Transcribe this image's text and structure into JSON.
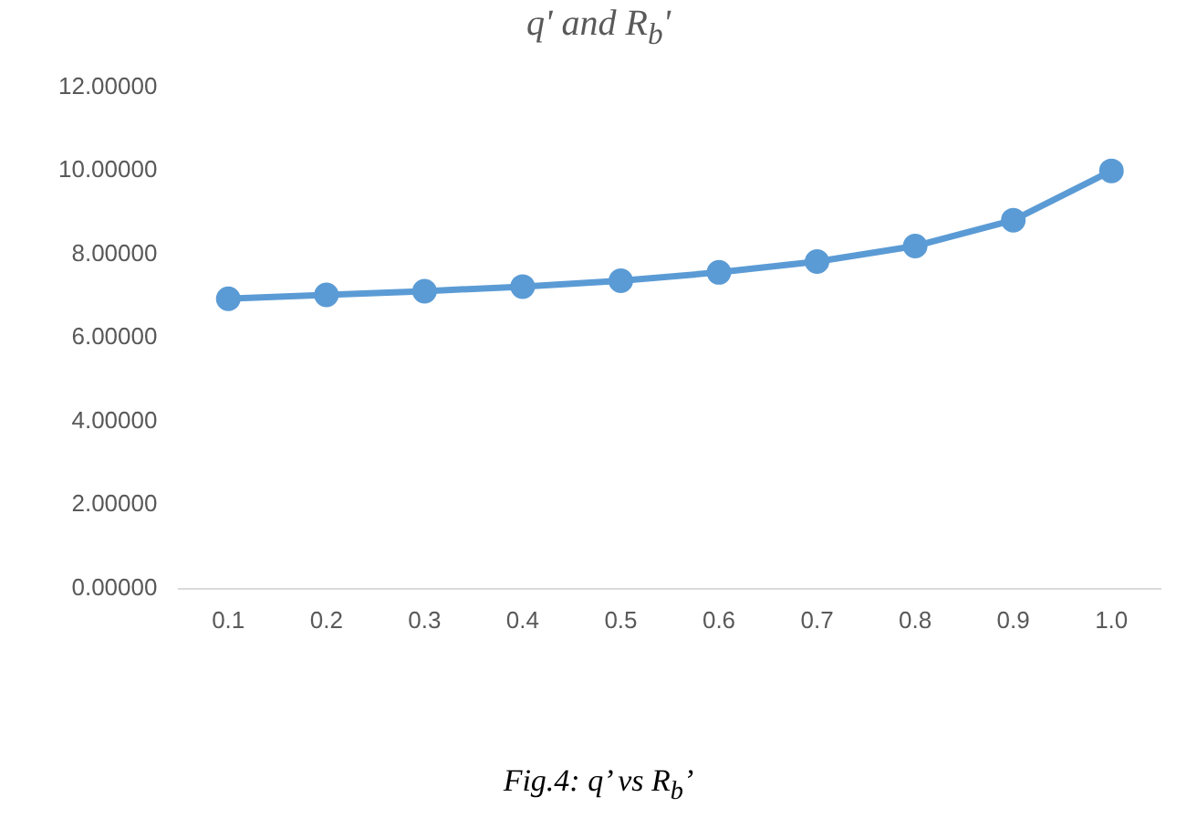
{
  "chart_data": {
    "type": "line",
    "title": "q' and R$_{b}$'",
    "categories": [
      "0.1",
      "0.2",
      "0.3",
      "0.4",
      "0.5",
      "0.6",
      "0.7",
      "0.8",
      "0.9",
      "1.0"
    ],
    "series": [
      {
        "color": "#5b9bd5",
        "values": [
          6.94,
          7.03,
          7.12,
          7.23,
          7.37,
          7.57,
          7.83,
          8.2,
          8.82,
          10.0
        ]
      }
    ],
    "ylim": [
      0,
      12
    ],
    "yticks": [
      {
        "value": 0,
        "label": "0.00000"
      },
      {
        "value": 2,
        "label": "2.00000"
      },
      {
        "value": 4,
        "label": "4.00000"
      },
      {
        "value": 6,
        "label": "6.00000"
      },
      {
        "value": 8,
        "label": "8.00000"
      },
      {
        "value": 10,
        "label": "10.00000"
      },
      {
        "value": 12,
        "label": "12.00000"
      }
    ],
    "grid": false,
    "legend": false,
    "marker": "circle",
    "line_style": "solid",
    "annotations": [
      "Fig.4: q’ vs R$_{b}$’"
    ]
  }
}
